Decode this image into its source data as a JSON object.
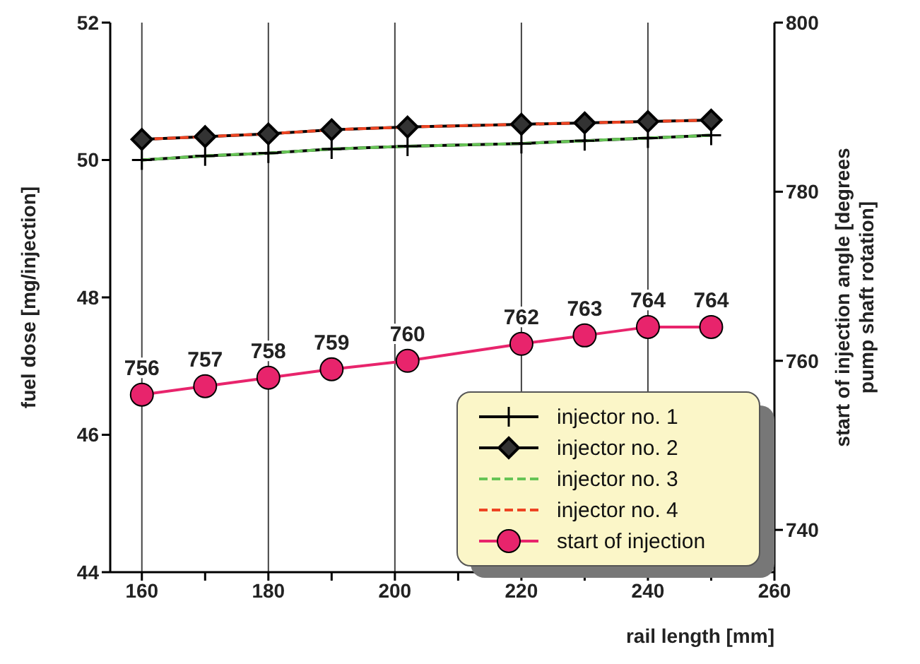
{
  "chart_data": {
    "type": "line",
    "xlabel": "rail length [mm]",
    "ylabel": "fuel dose [mg/injection]",
    "y2label": "start of injection angle [degrees pump shaft rotation]",
    "x": [
      160,
      170,
      180,
      190,
      202,
      220,
      230,
      240,
      250
    ],
    "xlim": [
      155,
      260
    ],
    "xticks": [
      160,
      {
        "value": 170,
        "label": null
      },
      180,
      {
        "value": 190,
        "label": null
      },
      200,
      {
        "value": 210,
        "label": null
      },
      220,
      {
        "value": 230,
        "label": null
      },
      240,
      {
        "value": 250,
        "label": null
      },
      260
    ],
    "ylim": [
      44,
      52
    ],
    "yticks": [
      44,
      46,
      48,
      50,
      52
    ],
    "y2lim": [
      735,
      800
    ],
    "y2ticks": [
      740,
      760,
      780,
      800
    ],
    "grid": true,
    "legend": "bottom right",
    "series": [
      {
        "name": "injector no. 1",
        "color": "#000000",
        "marker": "cross",
        "line_style": "solid",
        "values": [
          50.0,
          50.06,
          50.1,
          50.16,
          50.2,
          50.24,
          50.28,
          50.32,
          50.36
        ]
      },
      {
        "name": "injector no. 2",
        "color": "#000000",
        "marker": "diamond",
        "line_style": "solid",
        "values": [
          50.3,
          50.34,
          50.38,
          50.44,
          50.48,
          50.52,
          50.54,
          50.56,
          50.58
        ]
      },
      {
        "name": "injector no. 3",
        "color": "#66c455",
        "marker": "none",
        "line_style": "dashed",
        "values": [
          50.0,
          50.06,
          50.1,
          50.16,
          50.2,
          50.24,
          50.28,
          50.32,
          50.36
        ]
      },
      {
        "name": "injector no. 4",
        "color": "#ee4422",
        "marker": "none",
        "line_style": "dashed",
        "values": [
          50.3,
          50.34,
          50.38,
          50.44,
          50.48,
          50.52,
          50.54,
          50.56,
          50.58
        ]
      },
      {
        "name": "start of injection",
        "color": "#e8246c",
        "marker": "circle",
        "line_style": "solid",
        "axis": "y2",
        "data_labels": true,
        "values": [
          756,
          757,
          758,
          759,
          760,
          762,
          763,
          764,
          764
        ]
      }
    ]
  }
}
